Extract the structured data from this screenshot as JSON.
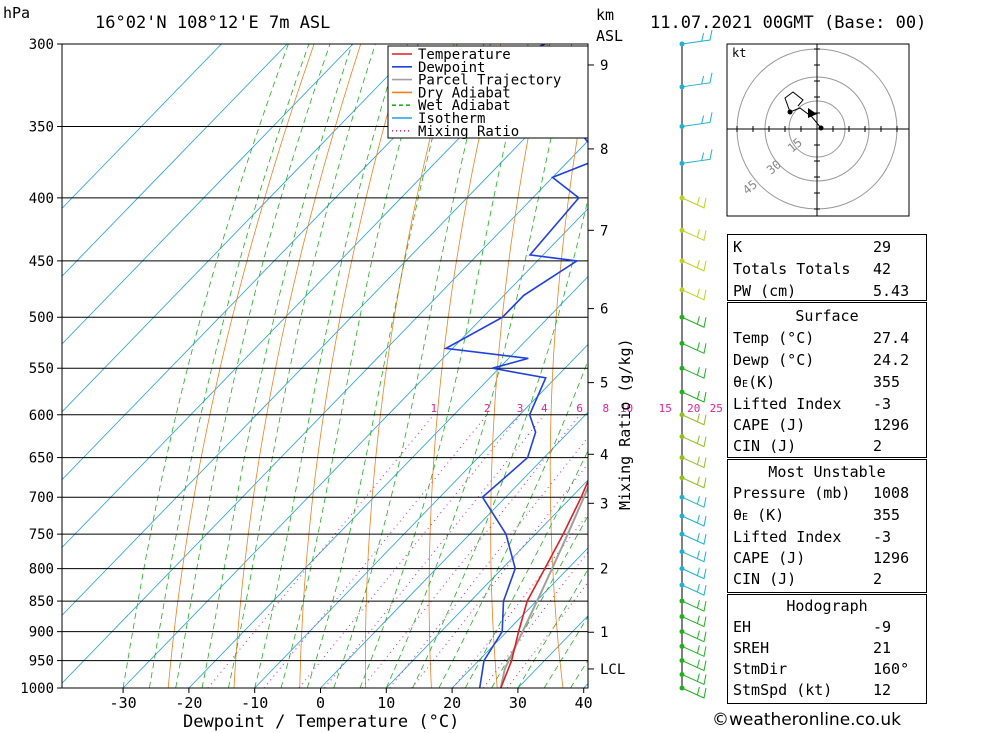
{
  "header": {
    "hpa_label": "hPa",
    "location": "16°02'N  108°12'E  7m  ASL",
    "km_label": "km",
    "asl_label": "ASL",
    "datetime": "11.07.2021  00GMT  (Base: 00)"
  },
  "chart_data": {
    "type": "line",
    "title": "",
    "xlabel": "Dewpoint / Temperature (°C)",
    "ylabel": "hPa",
    "right_label": "Mixing Ratio (g/kg)",
    "xlim": [
      -40,
      40
    ],
    "ylim": [
      1000,
      300
    ],
    "x_ticks": [
      -30,
      -20,
      -10,
      0,
      10,
      20,
      30,
      40
    ],
    "pressure_levels": [
      300,
      350,
      400,
      450,
      500,
      550,
      600,
      650,
      700,
      750,
      800,
      850,
      900,
      950,
      1000
    ],
    "height_ticks_km": [
      {
        "label": "9",
        "p": 312
      },
      {
        "label": "8",
        "p": 365
      },
      {
        "label": "7",
        "p": 425
      },
      {
        "label": "6",
        "p": 492
      },
      {
        "label": "5",
        "p": 565
      },
      {
        "label": "4",
        "p": 646
      },
      {
        "label": "3",
        "p": 708
      },
      {
        "label": "2",
        "p": 800
      },
      {
        "label": "1",
        "p": 901
      },
      {
        "label": "LCL",
        "p": 965
      }
    ],
    "mixing_ratio_labels": [
      "1",
      "2",
      "3",
      "4",
      "6",
      "8",
      "10",
      "15",
      "20",
      "25"
    ],
    "legend": [
      "Temperature",
      "Dewpoint",
      "Parcel Trajectory",
      "Dry Adiabat",
      "Wet Adiabat",
      "Isotherm",
      "Mixing Ratio"
    ],
    "series": [
      {
        "name": "Temperature",
        "color": "#e02020",
        "points": [
          [
            1000,
            27.4
          ],
          [
            950,
            25
          ],
          [
            900,
            21.8
          ],
          [
            850,
            18.6
          ],
          [
            800,
            16.5
          ],
          [
            750,
            14.2
          ],
          [
            700,
            11.5
          ],
          [
            650,
            8.2
          ],
          [
            600,
            4.6
          ],
          [
            580,
            3.5
          ],
          [
            550,
            0.6
          ],
          [
            500,
            -4.6
          ],
          [
            480,
            -7.5
          ],
          [
            450,
            -11.3
          ],
          [
            400,
            -17.7
          ],
          [
            380,
            -20.3
          ],
          [
            365,
            -22.5
          ],
          [
            360,
            -22.2
          ]
        ]
      },
      {
        "name": "Dewpoint",
        "color": "#2040e0",
        "points": [
          [
            1000,
            24.2
          ],
          [
            950,
            20.8
          ],
          [
            900,
            19.3
          ],
          [
            850,
            15
          ],
          [
            800,
            12
          ],
          [
            750,
            5.5
          ],
          [
            700,
            -3.5
          ],
          [
            650,
            -2.5
          ],
          [
            620,
            -5
          ],
          [
            600,
            -8.5
          ],
          [
            560,
            -11.5
          ],
          [
            550,
            -21
          ],
          [
            540,
            -17
          ],
          [
            530,
            -31
          ],
          [
            500,
            -27
          ],
          [
            480,
            -27
          ],
          [
            450,
            -24
          ],
          [
            445,
            -32
          ],
          [
            400,
            -33
          ],
          [
            385,
            -40
          ],
          [
            370,
            -35
          ],
          [
            360,
            -40
          ],
          [
            350,
            -44
          ],
          [
            345,
            -54
          ],
          [
            330,
            -50
          ],
          [
            325,
            -46
          ],
          [
            315,
            -52
          ],
          [
            310,
            -54
          ],
          [
            303,
            -62
          ],
          [
            298,
            -60
          ]
        ]
      },
      {
        "name": "Parcel Trajectory",
        "color": "#a0a0a0",
        "points": [
          [
            1000,
            27.4
          ],
          [
            965,
            25.2
          ],
          [
            900,
            22.4
          ],
          [
            850,
            20.1
          ],
          [
            800,
            17.6
          ],
          [
            750,
            14.9
          ],
          [
            700,
            11.9
          ],
          [
            650,
            8.6
          ],
          [
            600,
            4.9
          ],
          [
            550,
            0.8
          ],
          [
            500,
            -3.9
          ],
          [
            450,
            -9.3
          ],
          [
            400,
            -15.6
          ],
          [
            380,
            -18.5
          ],
          [
            360,
            -21.7
          ]
        ]
      }
    ]
  },
  "hodograph": {
    "unit": "kt",
    "ring_labels": [
      "15",
      "30",
      "45"
    ]
  },
  "indices": {
    "k_label": "K",
    "k_value": "29",
    "tt_label": "Totals Totals",
    "tt_value": "42",
    "pw_label": "PW (cm)",
    "pw_value": "5.43"
  },
  "surface": {
    "title": "Surface",
    "temp_label": "Temp (°C)",
    "temp_value": "27.4",
    "dewp_label": "Dewp (°C)",
    "dewp_value": "24.2",
    "theta_label": "θ",
    "theta_sub": "E",
    "theta_unit": "(K)",
    "theta_value": "355",
    "li_label": "Lifted Index",
    "li_value": "-3",
    "cape_label": "CAPE (J)",
    "cape_value": "1296",
    "cin_label": "CIN (J)",
    "cin_value": "2"
  },
  "most_unstable": {
    "title": "Most Unstable",
    "pressure_label": "Pressure (mb)",
    "pressure_value": "1008",
    "theta_label": "θ",
    "theta_sub": "E",
    "theta_unit": " (K)",
    "theta_value": "355",
    "li_label": "Lifted Index",
    "li_value": "-3",
    "cape_label": "CAPE (J)",
    "cape_value": "1296",
    "cin_label": "CIN (J)",
    "cin_value": "2"
  },
  "hodograph_stats": {
    "title": "Hodograph",
    "eh_label": "EH",
    "eh_value": "-9",
    "sreh_label": "SREH",
    "sreh_value": "21",
    "stmdir_label": "StmDir",
    "stmdir_value": "160°",
    "stmspd_label": "StmSpd (kt)",
    "stmspd_value": "12"
  },
  "credit": "©weatheronline.co.uk",
  "colors": {
    "temperature": "#e02020",
    "dewpoint": "#2040e0",
    "parcel": "#a0a0a0",
    "dry_adiabat": "#f08020",
    "wet_adiabat": "#20b020",
    "isotherm": "#20a0e0",
    "mixing_ratio": "#e020a0"
  }
}
